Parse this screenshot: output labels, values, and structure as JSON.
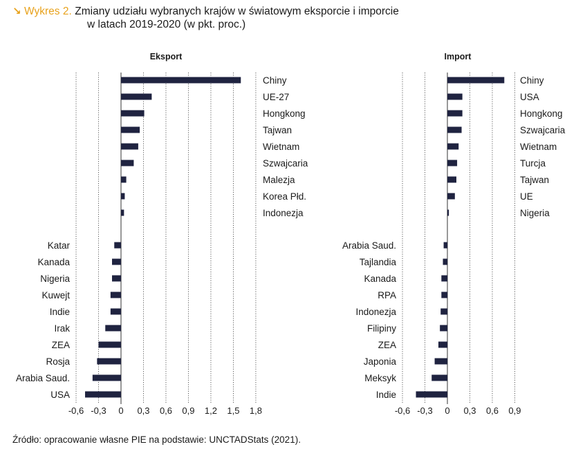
{
  "header": {
    "icon": "arrow-down-right-icon",
    "label": "Wykres 2.",
    "title_line1": "Zmiany udziału wybranych krajów w światowym eksporcie i imporcie",
    "title_line2": "w latach 2019-2020 (w pkt. proc.)"
  },
  "source": "Źródło: opracowanie własne PIE na podstawie: UNCTADStats (2021).",
  "colors": {
    "bar": "#1f2340",
    "accent": "#e8a21c",
    "grid": "#333333"
  },
  "chart_data": [
    {
      "type": "bar",
      "orientation": "horizontal",
      "title": "Eksport",
      "ticks": [
        "-0,6",
        "-0,3",
        "0",
        "0,3",
        "0,6",
        "0,9",
        "1,2",
        "1,5",
        "1,8"
      ],
      "tick_values": [
        -0.6,
        -0.3,
        0,
        0.3,
        0.6,
        0.9,
        1.2,
        1.5,
        1.8
      ],
      "xlim": [
        -0.6,
        1.8
      ],
      "categories": [
        "Chiny",
        "UE-27",
        "Hongkong",
        "Tajwan",
        "Wietnam",
        "Szwajcaria",
        "Malezja",
        "Korea Płd.",
        "Indonezja",
        "Katar",
        "Kanada",
        "Nigeria",
        "Kuwejt",
        "Indie",
        "Irak",
        "ZEA",
        "Rosja",
        "Arabia Saud.",
        "USA"
      ],
      "values": [
        1.6,
        0.41,
        0.31,
        0.25,
        0.23,
        0.17,
        0.07,
        0.05,
        0.04,
        -0.09,
        -0.12,
        -0.12,
        -0.14,
        -0.14,
        -0.21,
        -0.3,
        -0.32,
        -0.38,
        -0.48
      ]
    },
    {
      "type": "bar",
      "orientation": "horizontal",
      "title": "Import",
      "ticks": [
        "-0,6",
        "-0,3",
        "0",
        "0,3",
        "0,6",
        "0,9"
      ],
      "tick_values": [
        -0.6,
        -0.3,
        0,
        0.3,
        0.6,
        0.9
      ],
      "xlim": [
        -0.6,
        0.9
      ],
      "categories": [
        "Chiny",
        "USA",
        "Hongkong",
        "Szwajcaria",
        "Wietnam",
        "Turcja",
        "Tajwan",
        "UE",
        "Nigeria",
        "Arabia Saud.",
        "Tajlandia",
        "Kanada",
        "RPA",
        "Indonezja",
        "Filipiny",
        "ZEA",
        "Japonia",
        "Meksyk",
        "Indie"
      ],
      "values": [
        0.76,
        0.2,
        0.2,
        0.19,
        0.15,
        0.13,
        0.12,
        0.1,
        0.02,
        -0.05,
        -0.06,
        -0.08,
        -0.08,
        -0.09,
        -0.1,
        -0.12,
        -0.17,
        -0.21,
        -0.42
      ]
    }
  ]
}
